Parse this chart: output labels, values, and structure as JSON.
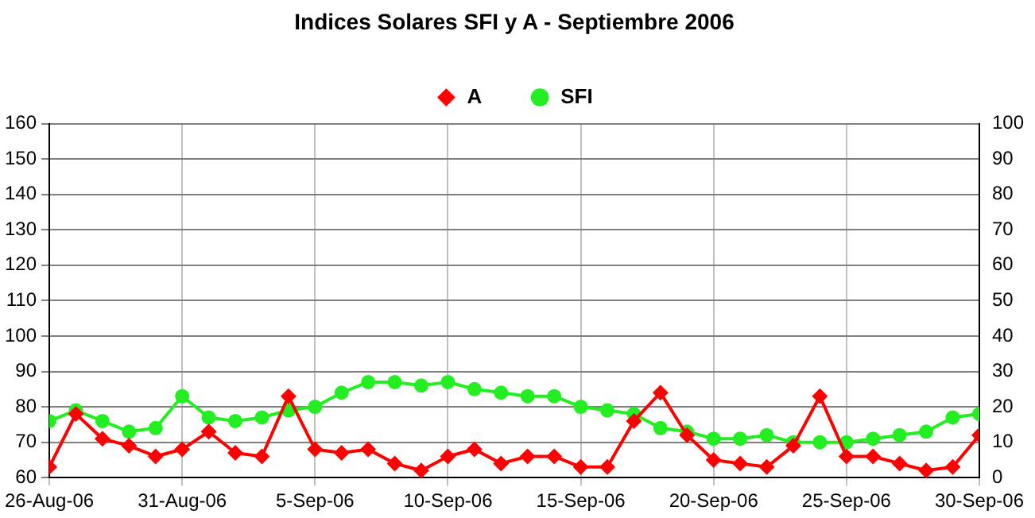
{
  "chart_data": {
    "type": "line",
    "title": "Indices Solares SFI y A - Septiembre 2006",
    "x": [
      "2006-08-26",
      "2006-08-27",
      "2006-08-28",
      "2006-08-29",
      "2006-08-30",
      "2006-08-31",
      "2006-09-01",
      "2006-09-02",
      "2006-09-03",
      "2006-09-04",
      "2006-09-05",
      "2006-09-06",
      "2006-09-07",
      "2006-09-08",
      "2006-09-09",
      "2006-09-10",
      "2006-09-11",
      "2006-09-12",
      "2006-09-13",
      "2006-09-14",
      "2006-09-15",
      "2006-09-16",
      "2006-09-17",
      "2006-09-18",
      "2006-09-19",
      "2006-09-20",
      "2006-09-21",
      "2006-09-22",
      "2006-09-23",
      "2006-09-24",
      "2006-09-25",
      "2006-09-26",
      "2006-09-27",
      "2006-09-28",
      "2006-09-29",
      "2006-09-30"
    ],
    "series": [
      {
        "name": "SFI",
        "color": "#22ee22",
        "marker": "circle",
        "values": [
          76,
          79,
          76,
          73,
          74,
          83,
          77,
          76,
          77,
          79,
          80,
          84,
          87,
          87,
          86,
          87,
          85,
          84,
          83,
          83,
          80,
          79,
          78,
          74,
          73,
          71,
          71,
          72,
          70,
          70,
          70,
          71,
          72,
          73,
          77,
          78
        ]
      },
      {
        "name": "A",
        "color": "#ff0000",
        "marker": "diamond",
        "axis": "y2",
        "values": [
          3,
          18,
          11,
          9,
          6,
          8,
          13,
          7,
          6,
          23,
          8,
          7,
          8,
          4,
          2,
          6,
          8,
          4,
          6,
          6,
          3,
          3,
          16,
          24,
          12,
          5,
          4,
          3,
          9,
          23,
          6,
          6,
          4,
          2,
          3,
          12
        ]
      }
    ],
    "xlim": [
      "2006-08-26",
      "2006-09-30"
    ],
    "xticks": [
      {
        "value": "2006-08-26",
        "label": "26-Aug-06"
      },
      {
        "value": "2006-08-31",
        "label": "31-Aug-06"
      },
      {
        "value": "2006-09-05",
        "label": "5-Sep-06"
      },
      {
        "value": "2006-09-10",
        "label": "10-Sep-06"
      },
      {
        "value": "2006-09-15",
        "label": "15-Sep-06"
      },
      {
        "value": "2006-09-20",
        "label": "20-Sep-06"
      },
      {
        "value": "2006-09-25",
        "label": "25-Sep-06"
      },
      {
        "value": "2006-09-30",
        "label": "30-Sep-06"
      }
    ],
    "ylim": [
      60,
      160
    ],
    "yticks": [
      60,
      70,
      80,
      90,
      100,
      110,
      120,
      130,
      140,
      150,
      160
    ],
    "y2lim": [
      0,
      100
    ],
    "y2ticks": [
      0,
      10,
      20,
      30,
      40,
      50,
      60,
      70,
      80,
      90,
      100
    ],
    "grid": true,
    "legend": "top",
    "line_style": "solid"
  }
}
